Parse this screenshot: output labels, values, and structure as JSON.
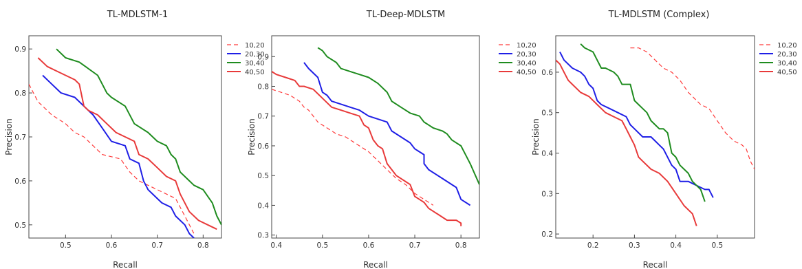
{
  "chart_data": [
    {
      "type": "line",
      "title": "TL-MDLSTM-1",
      "xlabel": "Recall",
      "ylabel": "Precision",
      "xlim": [
        0.42,
        0.84
      ],
      "ylim": [
        0.47,
        0.93
      ],
      "xticks": [
        0.5,
        0.6,
        0.7,
        0.8
      ],
      "yticks": [
        0.5,
        0.6,
        0.7,
        0.8,
        0.9
      ],
      "grid": false,
      "legend_position": "right",
      "series": [
        {
          "name": "10,20",
          "color": "#ff3b3b",
          "dash": true,
          "x": [
            0.42,
            0.44,
            0.47,
            0.5,
            0.52,
            0.54,
            0.56,
            0.58,
            0.6,
            0.62,
            0.64,
            0.66,
            0.68,
            0.7,
            0.72,
            0.74,
            0.76,
            0.78
          ],
          "y": [
            0.82,
            0.78,
            0.75,
            0.73,
            0.71,
            0.7,
            0.68,
            0.66,
            0.655,
            0.65,
            0.62,
            0.6,
            0.59,
            0.58,
            0.57,
            0.56,
            0.52,
            0.48
          ]
        },
        {
          "name": "20,30",
          "color": "#1f1fe6",
          "dash": false,
          "x": [
            0.45,
            0.47,
            0.49,
            0.52,
            0.54,
            0.56,
            0.58,
            0.6,
            0.63,
            0.64,
            0.66,
            0.67,
            0.68,
            0.69,
            0.71,
            0.73,
            0.74,
            0.76,
            0.77,
            0.78
          ],
          "y": [
            0.84,
            0.82,
            0.8,
            0.79,
            0.77,
            0.75,
            0.72,
            0.69,
            0.68,
            0.65,
            0.64,
            0.6,
            0.58,
            0.57,
            0.55,
            0.54,
            0.52,
            0.5,
            0.48,
            0.47
          ]
        },
        {
          "name": "30,40",
          "color": "#1f8c1f",
          "dash": false,
          "x": [
            0.48,
            0.5,
            0.53,
            0.55,
            0.57,
            0.58,
            0.59,
            0.6,
            0.63,
            0.65,
            0.68,
            0.7,
            0.72,
            0.73,
            0.74,
            0.75,
            0.77,
            0.78,
            0.8,
            0.82,
            0.83,
            0.84
          ],
          "y": [
            0.9,
            0.88,
            0.87,
            0.855,
            0.84,
            0.82,
            0.8,
            0.79,
            0.77,
            0.73,
            0.71,
            0.69,
            0.68,
            0.66,
            0.65,
            0.62,
            0.6,
            0.59,
            0.58,
            0.55,
            0.52,
            0.5
          ]
        },
        {
          "name": "40,50",
          "color": "#e83a3a",
          "dash": false,
          "x": [
            0.44,
            0.46,
            0.48,
            0.5,
            0.52,
            0.53,
            0.54,
            0.55,
            0.57,
            0.59,
            0.61,
            0.63,
            0.65,
            0.66,
            0.68,
            0.7,
            0.72,
            0.74,
            0.75,
            0.77,
            0.79,
            0.81,
            0.83
          ],
          "y": [
            0.88,
            0.86,
            0.85,
            0.84,
            0.83,
            0.82,
            0.77,
            0.76,
            0.75,
            0.73,
            0.71,
            0.7,
            0.69,
            0.66,
            0.65,
            0.63,
            0.61,
            0.6,
            0.57,
            0.53,
            0.51,
            0.5,
            0.49
          ]
        }
      ]
    },
    {
      "type": "line",
      "title": "TL-Deep-MDLSTM",
      "xlabel": "Recall",
      "ylabel": "Precision",
      "xlim": [
        0.39,
        0.84
      ],
      "ylim": [
        0.29,
        0.97
      ],
      "xticks": [
        0.4,
        0.5,
        0.6,
        0.7,
        0.8
      ],
      "yticks": [
        0.3,
        0.4,
        0.5,
        0.6,
        0.7,
        0.8,
        0.9
      ],
      "grid": false,
      "legend_position": "right",
      "series": [
        {
          "name": "10,20",
          "color": "#ff3b3b",
          "dash": true,
          "x": [
            0.39,
            0.41,
            0.43,
            0.45,
            0.46,
            0.47,
            0.49,
            0.51,
            0.53,
            0.55,
            0.57,
            0.59,
            0.6,
            0.62,
            0.64,
            0.66,
            0.68,
            0.7,
            0.71,
            0.72,
            0.74
          ],
          "y": [
            0.79,
            0.78,
            0.77,
            0.75,
            0.73,
            0.72,
            0.68,
            0.66,
            0.64,
            0.63,
            0.61,
            0.59,
            0.58,
            0.55,
            0.52,
            0.49,
            0.47,
            0.44,
            0.43,
            0.42,
            0.4
          ]
        },
        {
          "name": "20,30",
          "color": "#1f1fe6",
          "dash": false,
          "x": [
            0.46,
            0.47,
            0.49,
            0.5,
            0.51,
            0.52,
            0.54,
            0.56,
            0.58,
            0.6,
            0.62,
            0.64,
            0.65,
            0.67,
            0.69,
            0.7,
            0.71,
            0.72,
            0.72,
            0.73,
            0.76,
            0.79,
            0.8,
            0.82
          ],
          "y": [
            0.88,
            0.86,
            0.83,
            0.78,
            0.77,
            0.75,
            0.74,
            0.73,
            0.72,
            0.7,
            0.69,
            0.68,
            0.65,
            0.63,
            0.61,
            0.59,
            0.58,
            0.57,
            0.54,
            0.52,
            0.49,
            0.46,
            0.42,
            0.4
          ]
        },
        {
          "name": "30,40",
          "color": "#1f8c1f",
          "dash": false,
          "x": [
            0.49,
            0.5,
            0.51,
            0.53,
            0.54,
            0.56,
            0.58,
            0.6,
            0.62,
            0.64,
            0.65,
            0.67,
            0.69,
            0.71,
            0.72,
            0.73,
            0.74,
            0.76,
            0.77,
            0.78,
            0.8,
            0.81,
            0.82,
            0.84
          ],
          "y": [
            0.93,
            0.92,
            0.9,
            0.88,
            0.86,
            0.85,
            0.84,
            0.83,
            0.81,
            0.78,
            0.75,
            0.73,
            0.71,
            0.7,
            0.68,
            0.67,
            0.66,
            0.65,
            0.64,
            0.62,
            0.6,
            0.57,
            0.54,
            0.47
          ]
        },
        {
          "name": "40,50",
          "color": "#e83a3a",
          "dash": false,
          "x": [
            0.39,
            0.4,
            0.42,
            0.44,
            0.45,
            0.46,
            0.48,
            0.5,
            0.52,
            0.54,
            0.56,
            0.58,
            0.59,
            0.6,
            0.61,
            0.62,
            0.63,
            0.64,
            0.66,
            0.68,
            0.69,
            0.7,
            0.71,
            0.72,
            0.73,
            0.75,
            0.77,
            0.79,
            0.8,
            0.8
          ],
          "y": [
            0.85,
            0.84,
            0.83,
            0.82,
            0.8,
            0.8,
            0.79,
            0.76,
            0.73,
            0.72,
            0.71,
            0.7,
            0.67,
            0.66,
            0.62,
            0.6,
            0.59,
            0.54,
            0.5,
            0.48,
            0.47,
            0.43,
            0.42,
            0.41,
            0.39,
            0.37,
            0.35,
            0.35,
            0.34,
            0.33
          ]
        }
      ]
    },
    {
      "type": "line",
      "title": "TL-MDLSTM (Complex)",
      "xlabel": "Recall",
      "ylabel": "Precision",
      "xlim": [
        0.11,
        0.59
      ],
      "ylim": [
        0.19,
        0.69
      ],
      "xticks": [
        0.2,
        0.3,
        0.4,
        0.5
      ],
      "yticks": [
        0.2,
        0.3,
        0.4,
        0.5,
        0.6
      ],
      "grid": false,
      "legend_position": "right",
      "series": [
        {
          "name": "10,20",
          "color": "#ff3b3b",
          "dash": true,
          "x": [
            0.29,
            0.31,
            0.33,
            0.35,
            0.37,
            0.39,
            0.41,
            0.43,
            0.45,
            0.46,
            0.48,
            0.5,
            0.52,
            0.54,
            0.56,
            0.57,
            0.58,
            0.59
          ],
          "y": [
            0.66,
            0.66,
            0.65,
            0.63,
            0.61,
            0.6,
            0.58,
            0.55,
            0.53,
            0.52,
            0.51,
            0.48,
            0.45,
            0.43,
            0.42,
            0.41,
            0.38,
            0.36
          ]
        },
        {
          "name": "20,30",
          "color": "#1f1fe6",
          "dash": false,
          "x": [
            0.12,
            0.13,
            0.15,
            0.17,
            0.18,
            0.19,
            0.2,
            0.21,
            0.22,
            0.24,
            0.26,
            0.28,
            0.29,
            0.3,
            0.32,
            0.34,
            0.35,
            0.36,
            0.37,
            0.38,
            0.39,
            0.4,
            0.41,
            0.43,
            0.45,
            0.47,
            0.48,
            0.49
          ],
          "y": [
            0.65,
            0.63,
            0.61,
            0.6,
            0.59,
            0.57,
            0.56,
            0.53,
            0.52,
            0.51,
            0.5,
            0.49,
            0.47,
            0.46,
            0.44,
            0.44,
            0.43,
            0.42,
            0.41,
            0.39,
            0.37,
            0.36,
            0.33,
            0.33,
            0.32,
            0.31,
            0.31,
            0.29
          ]
        },
        {
          "name": "30,40",
          "color": "#1f8c1f",
          "dash": false,
          "x": [
            0.17,
            0.18,
            0.2,
            0.21,
            0.22,
            0.23,
            0.25,
            0.26,
            0.27,
            0.28,
            0.29,
            0.3,
            0.31,
            0.32,
            0.33,
            0.34,
            0.35,
            0.36,
            0.37,
            0.38,
            0.39,
            0.4,
            0.41,
            0.42,
            0.43,
            0.44,
            0.46,
            0.47
          ],
          "y": [
            0.67,
            0.66,
            0.65,
            0.63,
            0.61,
            0.61,
            0.6,
            0.59,
            0.57,
            0.57,
            0.57,
            0.53,
            0.52,
            0.51,
            0.5,
            0.48,
            0.47,
            0.46,
            0.46,
            0.45,
            0.4,
            0.39,
            0.37,
            0.36,
            0.35,
            0.33,
            0.31,
            0.28
          ]
        },
        {
          "name": "40,50",
          "color": "#e83a3a",
          "dash": false,
          "x": [
            0.11,
            0.12,
            0.13,
            0.14,
            0.15,
            0.17,
            0.19,
            0.21,
            0.23,
            0.25,
            0.27,
            0.28,
            0.29,
            0.3,
            0.31,
            0.32,
            0.34,
            0.36,
            0.38,
            0.4,
            0.42,
            0.44,
            0.45
          ],
          "y": [
            0.63,
            0.62,
            0.6,
            0.58,
            0.57,
            0.55,
            0.54,
            0.52,
            0.5,
            0.49,
            0.48,
            0.46,
            0.44,
            0.42,
            0.39,
            0.38,
            0.36,
            0.35,
            0.33,
            0.3,
            0.27,
            0.25,
            0.22
          ]
        }
      ]
    }
  ]
}
